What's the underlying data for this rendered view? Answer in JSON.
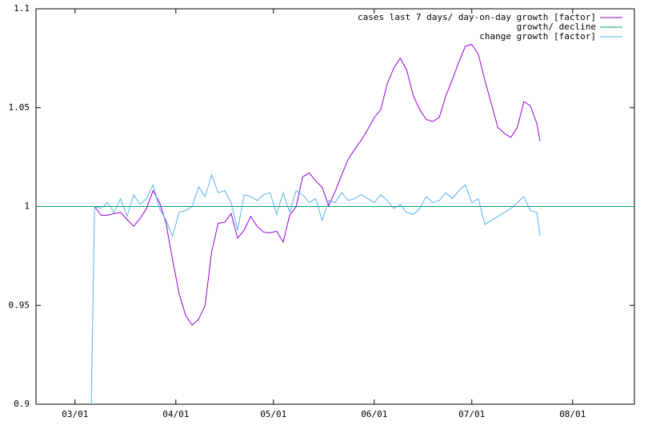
{
  "chart_data": {
    "type": "line",
    "legend": "top right",
    "xlim": [
      "02/18",
      "08/20"
    ],
    "xticks": [
      "03/01",
      "04/01",
      "05/01",
      "06/01",
      "07/01",
      "08/01"
    ],
    "ylim": [
      0.9,
      1.1
    ],
    "yticks": [
      0.9,
      0.95,
      1,
      1.05,
      1.1
    ],
    "series": [
      {
        "name": "cases last 7 days/ day-on-day growth [factor]",
        "color": "#9400d3",
        "x": [
          "03/07",
          "03/09",
          "03/11",
          "03/13",
          "03/15",
          "03/17",
          "03/19",
          "03/21",
          "03/23",
          "03/25",
          "03/27",
          "03/29",
          "03/31",
          "04/02",
          "04/04",
          "04/06",
          "04/08",
          "04/10",
          "04/12",
          "04/14",
          "04/16",
          "04/18",
          "04/20",
          "04/22",
          "04/24",
          "04/26",
          "04/28",
          "04/30",
          "05/02",
          "05/04",
          "05/06",
          "05/08",
          "05/10",
          "05/12",
          "05/14",
          "05/16",
          "05/18",
          "05/20",
          "05/22",
          "05/24",
          "05/26",
          "05/28",
          "05/30",
          "06/01",
          "06/03",
          "06/05",
          "06/07",
          "06/09",
          "06/11",
          "06/13",
          "06/15",
          "06/17",
          "06/19",
          "06/21",
          "06/23",
          "06/25",
          "06/27",
          "06/29",
          "07/01",
          "07/03",
          "07/05",
          "07/07",
          "07/09",
          "07/11",
          "07/13",
          "07/15",
          "07/17",
          "07/19",
          "07/21",
          "07/22"
        ],
        "values": [
          1.0,
          0.9956,
          0.9956,
          0.9964,
          0.997,
          0.9935,
          0.99,
          0.994,
          0.999,
          1.008,
          1.002,
          0.9915,
          0.973,
          0.956,
          0.945,
          0.94,
          0.943,
          0.95,
          0.977,
          0.9915,
          0.992,
          0.9964,
          0.984,
          0.988,
          0.995,
          0.99,
          0.987,
          0.9867,
          0.9875,
          0.982,
          0.9956,
          1.0,
          1.015,
          1.017,
          1.013,
          1.0097,
          1.0004,
          1.0077,
          1.016,
          1.024,
          1.029,
          1.0335,
          1.039,
          1.045,
          1.049,
          1.062,
          1.07,
          1.075,
          1.069,
          1.056,
          1.049,
          1.044,
          1.043,
          1.045,
          1.056,
          1.064,
          1.073,
          1.081,
          1.082,
          1.077,
          1.064,
          1.052,
          1.04,
          1.037,
          1.035,
          1.04,
          1.053,
          1.051,
          1.042,
          1.033
        ]
      },
      {
        "name": "growth/ decline",
        "color": "#009e73",
        "x": [
          "02/18",
          "08/20"
        ],
        "values": [
          1,
          1
        ]
      },
      {
        "name": "change growth [factor]",
        "color": "#56b4e9",
        "x": [
          "03/06",
          "03/07",
          "03/09",
          "03/11",
          "03/13",
          "03/15",
          "03/17",
          "03/19",
          "03/21",
          "03/23",
          "03/25",
          "03/27",
          "03/29",
          "03/31",
          "04/02",
          "04/04",
          "04/06",
          "04/08",
          "04/10",
          "04/12",
          "04/14",
          "04/16",
          "04/18",
          "04/20",
          "04/22",
          "04/24",
          "04/26",
          "04/28",
          "04/30",
          "05/02",
          "05/04",
          "05/06",
          "05/08",
          "05/10",
          "05/12",
          "05/14",
          "05/16",
          "05/18",
          "05/20",
          "05/22",
          "05/24",
          "05/26",
          "05/28",
          "05/30",
          "06/01",
          "06/03",
          "06/05",
          "06/07",
          "06/09",
          "06/11",
          "06/13",
          "06/15",
          "06/17",
          "06/19",
          "06/21",
          "06/23",
          "06/25",
          "06/27",
          "06/29",
          "07/01",
          "07/03",
          "07/05",
          "07/07",
          "07/09",
          "07/11",
          "07/13",
          "07/15",
          "07/17",
          "07/19",
          "07/21",
          "07/22"
        ],
        "values": [
          0.9,
          1.0,
          0.999,
          1.002,
          0.997,
          1.004,
          0.995,
          1.006,
          1.001,
          1.004,
          1.011,
          0.999,
          0.993,
          0.985,
          0.997,
          0.998,
          1.0,
          1.01,
          1.005,
          1.016,
          1.007,
          1.008,
          1.002,
          0.988,
          1.006,
          1.005,
          1.003,
          1.006,
          1.007,
          0.996,
          1.007,
          0.997,
          1.008,
          1.006,
          1.002,
          1.004,
          0.993,
          1.003,
          1.002,
          1.007,
          1.003,
          1.004,
          1.006,
          1.004,
          1.002,
          1.006,
          1.003,
          0.999,
          1.001,
          0.997,
          0.996,
          0.999,
          1.005,
          1.002,
          1.003,
          1.007,
          1.004,
          1.008,
          1.011,
          1.002,
          1.004,
          0.991,
          0.993,
          0.995,
          0.997,
          0.999,
          1.002,
          1.005,
          0.998,
          0.997,
          0.985
        ]
      }
    ]
  }
}
